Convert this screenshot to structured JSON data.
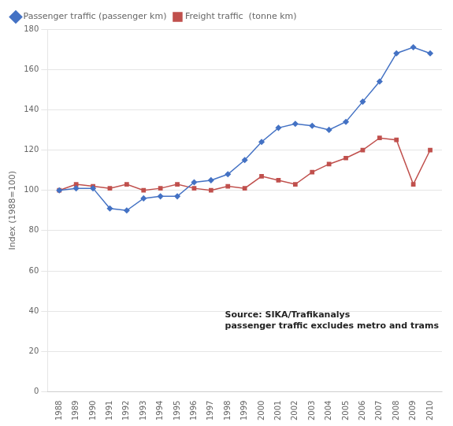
{
  "chart_data": {
    "type": "line",
    "x": [
      1988,
      1989,
      1990,
      1991,
      1992,
      1993,
      1994,
      1995,
      1996,
      1997,
      1998,
      1999,
      2000,
      2001,
      2002,
      2003,
      2004,
      2005,
      2006,
      2007,
      2008,
      2009,
      2010
    ],
    "series": [
      {
        "name": "Passenger traffic (passenger km)",
        "color": "#4472C4",
        "marker": "diamond",
        "values": [
          100,
          101,
          101,
          91,
          90,
          96,
          97,
          97,
          104,
          105,
          108,
          115,
          124,
          131,
          133,
          132,
          130,
          134,
          144,
          154,
          168,
          171,
          168
        ]
      },
      {
        "name": "Freight traffic  (tonne km)",
        "color": "#C0504D",
        "marker": "square",
        "values": [
          100,
          103,
          102,
          101,
          103,
          100,
          101,
          103,
          101,
          100,
          102,
          101,
          107,
          105,
          103,
          109,
          113,
          116,
          120,
          126,
          125,
          103,
          120
        ]
      }
    ],
    "y_label": "Index (1988=100)",
    "xlim": [
      1987.3,
      2010.7
    ],
    "xticks": [
      1988,
      1989,
      1990,
      1991,
      1992,
      1993,
      1994,
      1995,
      1996,
      1997,
      1998,
      1999,
      2000,
      2001,
      2002,
      2003,
      2004,
      2005,
      2006,
      2007,
      2008,
      2009,
      2010
    ],
    "ylim": [
      0,
      180
    ],
    "yticks": [
      0,
      20,
      40,
      60,
      80,
      100,
      120,
      140,
      160,
      180
    ],
    "annotations": [
      "Source: SIKA/Trafikanalys",
      "passenger traffic excludes metro and trams"
    ],
    "grid": true,
    "legend": "upper left"
  }
}
